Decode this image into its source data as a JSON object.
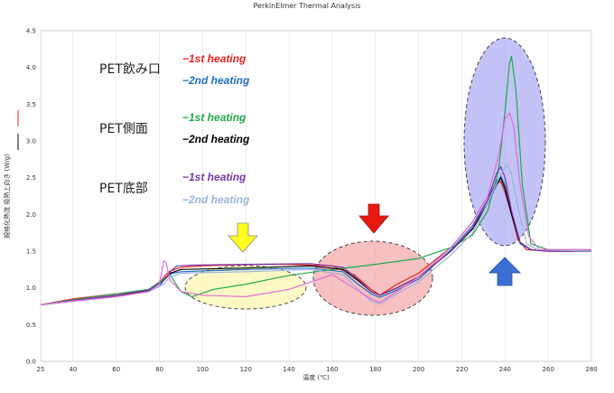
{
  "chart_data": {
    "type": "line",
    "title": "PerkinElmer Thermal Analysis",
    "xlabel": "温度 (℃)",
    "ylabel": "規格化熱流 吸熱上向き (W/g)",
    "xlim": [
      25,
      280
    ],
    "ylim": [
      0,
      4.5
    ],
    "xticks": [
      25,
      40,
      60,
      80,
      100,
      120,
      140,
      160,
      180,
      200,
      220,
      240,
      260,
      280
    ],
    "yticks": [
      0.0,
      0.5,
      1.0,
      1.5,
      2.0,
      2.5,
      3.0,
      3.5,
      4.0,
      4.5
    ],
    "grid": "vertical",
    "legend_groups": [
      {
        "label": "PET飲み口",
        "entries": [
          {
            "text": "−1st heating",
            "color": "#e8211c"
          },
          {
            "text": "−2nd heating",
            "color": "#1f6fc4"
          }
        ]
      },
      {
        "label": "PET側面",
        "entries": [
          {
            "text": "−1st heating",
            "color": "#22a84a"
          },
          {
            "text": "−2nd heating",
            "color": "#000000"
          }
        ]
      },
      {
        "label": "PET底部",
        "entries": [
          {
            "text": "−1st heating",
            "color": "#7a35a8"
          },
          {
            "text": "−2nd heating",
            "color": "#9ab3de"
          }
        ]
      }
    ],
    "series": [
      {
        "color": "#e8211c",
        "points": [
          [
            25,
            0.77
          ],
          [
            40,
            0.85
          ],
          [
            60,
            0.92
          ],
          [
            75,
            0.97
          ],
          [
            80,
            1.07
          ],
          [
            83,
            1.18
          ],
          [
            85,
            1.23
          ],
          [
            90,
            1.28
          ],
          [
            100,
            1.3
          ],
          [
            120,
            1.32
          ],
          [
            140,
            1.32
          ],
          [
            160,
            1.3
          ],
          [
            170,
            1.18
          ],
          [
            178,
            0.98
          ],
          [
            182,
            0.9
          ],
          [
            190,
            1.05
          ],
          [
            200,
            1.2
          ],
          [
            215,
            1.55
          ],
          [
            225,
            1.9
          ],
          [
            232,
            2.25
          ],
          [
            236,
            2.42
          ],
          [
            238,
            2.45
          ],
          [
            240,
            2.3
          ],
          [
            243,
            2.0
          ],
          [
            246,
            1.65
          ],
          [
            250,
            1.52
          ],
          [
            260,
            1.5
          ],
          [
            280,
            1.5
          ]
        ]
      },
      {
        "color": "#1f6fc4",
        "points": [
          [
            25,
            0.77
          ],
          [
            40,
            0.82
          ],
          [
            60,
            0.88
          ],
          [
            75,
            0.95
          ],
          [
            80,
            1.02
          ],
          [
            83,
            1.15
          ],
          [
            86,
            1.2
          ],
          [
            90,
            1.22
          ],
          [
            120,
            1.25
          ],
          [
            150,
            1.27
          ],
          [
            165,
            1.22
          ],
          [
            172,
            1.05
          ],
          [
            178,
            0.92
          ],
          [
            182,
            0.87
          ],
          [
            190,
            0.97
          ],
          [
            200,
            1.12
          ],
          [
            215,
            1.52
          ],
          [
            225,
            1.85
          ],
          [
            232,
            2.2
          ],
          [
            236,
            2.45
          ],
          [
            238,
            2.52
          ],
          [
            240,
            2.4
          ],
          [
            243,
            2.0
          ],
          [
            247,
            1.6
          ],
          [
            252,
            1.52
          ],
          [
            260,
            1.5
          ],
          [
            280,
            1.5
          ]
        ]
      },
      {
        "color": "#22a84a",
        "points": [
          [
            25,
            0.77
          ],
          [
            40,
            0.84
          ],
          [
            60,
            0.92
          ],
          [
            75,
            0.98
          ],
          [
            82,
            1.12
          ],
          [
            85,
            1.18
          ],
          [
            87,
            1.08
          ],
          [
            90,
            0.95
          ],
          [
            95,
            0.88
          ],
          [
            105,
            0.98
          ],
          [
            120,
            1.05
          ],
          [
            140,
            1.17
          ],
          [
            160,
            1.25
          ],
          [
            180,
            1.32
          ],
          [
            200,
            1.4
          ],
          [
            215,
            1.55
          ],
          [
            225,
            1.72
          ],
          [
            232,
            2.05
          ],
          [
            237,
            2.6
          ],
          [
            240,
            3.4
          ],
          [
            242,
            4.05
          ],
          [
            243,
            4.15
          ],
          [
            245,
            3.7
          ],
          [
            248,
            2.4
          ],
          [
            252,
            1.6
          ],
          [
            260,
            1.52
          ],
          [
            280,
            1.52
          ]
        ]
      },
      {
        "color": "#000000",
        "points": [
          [
            25,
            0.77
          ],
          [
            40,
            0.82
          ],
          [
            60,
            0.89
          ],
          [
            75,
            0.96
          ],
          [
            82,
            1.1
          ],
          [
            85,
            1.2
          ],
          [
            90,
            1.25
          ],
          [
            120,
            1.27
          ],
          [
            150,
            1.3
          ],
          [
            165,
            1.25
          ],
          [
            172,
            1.1
          ],
          [
            178,
            0.95
          ],
          [
            182,
            0.9
          ],
          [
            190,
            1.0
          ],
          [
            200,
            1.15
          ],
          [
            215,
            1.5
          ],
          [
            225,
            1.8
          ],
          [
            232,
            2.15
          ],
          [
            236,
            2.4
          ],
          [
            238,
            2.5
          ],
          [
            240,
            2.35
          ],
          [
            243,
            2.0
          ],
          [
            247,
            1.62
          ],
          [
            252,
            1.52
          ],
          [
            260,
            1.5
          ],
          [
            280,
            1.5
          ]
        ]
      },
      {
        "color": "#7a35a8",
        "points": [
          [
            25,
            0.77
          ],
          [
            40,
            0.83
          ],
          [
            60,
            0.9
          ],
          [
            75,
            0.97
          ],
          [
            82,
            1.1
          ],
          [
            85,
            1.22
          ],
          [
            88,
            1.3
          ],
          [
            95,
            1.31
          ],
          [
            120,
            1.32
          ],
          [
            150,
            1.33
          ],
          [
            165,
            1.28
          ],
          [
            172,
            1.12
          ],
          [
            178,
            0.95
          ],
          [
            182,
            0.9
          ],
          [
            190,
            1.0
          ],
          [
            200,
            1.15
          ],
          [
            215,
            1.5
          ],
          [
            225,
            1.82
          ],
          [
            232,
            2.2
          ],
          [
            236,
            2.55
          ],
          [
            238,
            2.65
          ],
          [
            240,
            2.5
          ],
          [
            243,
            2.05
          ],
          [
            247,
            1.62
          ],
          [
            252,
            1.52
          ],
          [
            260,
            1.5
          ],
          [
            280,
            1.5
          ]
        ]
      },
      {
        "color": "#9ab3de",
        "points": [
          [
            25,
            0.77
          ],
          [
            40,
            0.82
          ],
          [
            60,
            0.88
          ],
          [
            75,
            0.95
          ],
          [
            82,
            1.05
          ],
          [
            85,
            1.15
          ],
          [
            90,
            1.2
          ],
          [
            120,
            1.22
          ],
          [
            150,
            1.25
          ],
          [
            165,
            1.18
          ],
          [
            172,
            0.98
          ],
          [
            178,
            0.82
          ],
          [
            182,
            0.78
          ],
          [
            190,
            0.92
          ],
          [
            200,
            1.08
          ],
          [
            215,
            1.45
          ],
          [
            225,
            1.75
          ],
          [
            232,
            2.15
          ],
          [
            238,
            2.55
          ],
          [
            241,
            2.68
          ],
          [
            243,
            2.55
          ],
          [
            246,
            2.1
          ],
          [
            250,
            1.6
          ],
          [
            255,
            1.52
          ],
          [
            280,
            1.5
          ]
        ]
      },
      {
        "color": "#e36bd6",
        "points": [
          [
            25,
            0.77
          ],
          [
            40,
            0.82
          ],
          [
            60,
            0.88
          ],
          [
            75,
            0.95
          ],
          [
            80,
            1.05
          ],
          [
            82,
            1.37
          ],
          [
            83,
            1.35
          ],
          [
            85,
            1.1
          ],
          [
            90,
            0.95
          ],
          [
            100,
            0.9
          ],
          [
            120,
            0.88
          ],
          [
            140,
            0.98
          ],
          [
            160,
            1.18
          ],
          [
            170,
            1.0
          ],
          [
            178,
            0.85
          ],
          [
            182,
            0.8
          ],
          [
            190,
            0.95
          ],
          [
            200,
            1.15
          ],
          [
            215,
            1.55
          ],
          [
            225,
            1.9
          ],
          [
            232,
            2.25
          ],
          [
            237,
            2.8
          ],
          [
            240,
            3.3
          ],
          [
            242,
            3.38
          ],
          [
            244,
            3.2
          ],
          [
            247,
            2.4
          ],
          [
            251,
            1.7
          ],
          [
            256,
            1.52
          ],
          [
            280,
            1.52
          ]
        ]
      }
    ]
  }
}
